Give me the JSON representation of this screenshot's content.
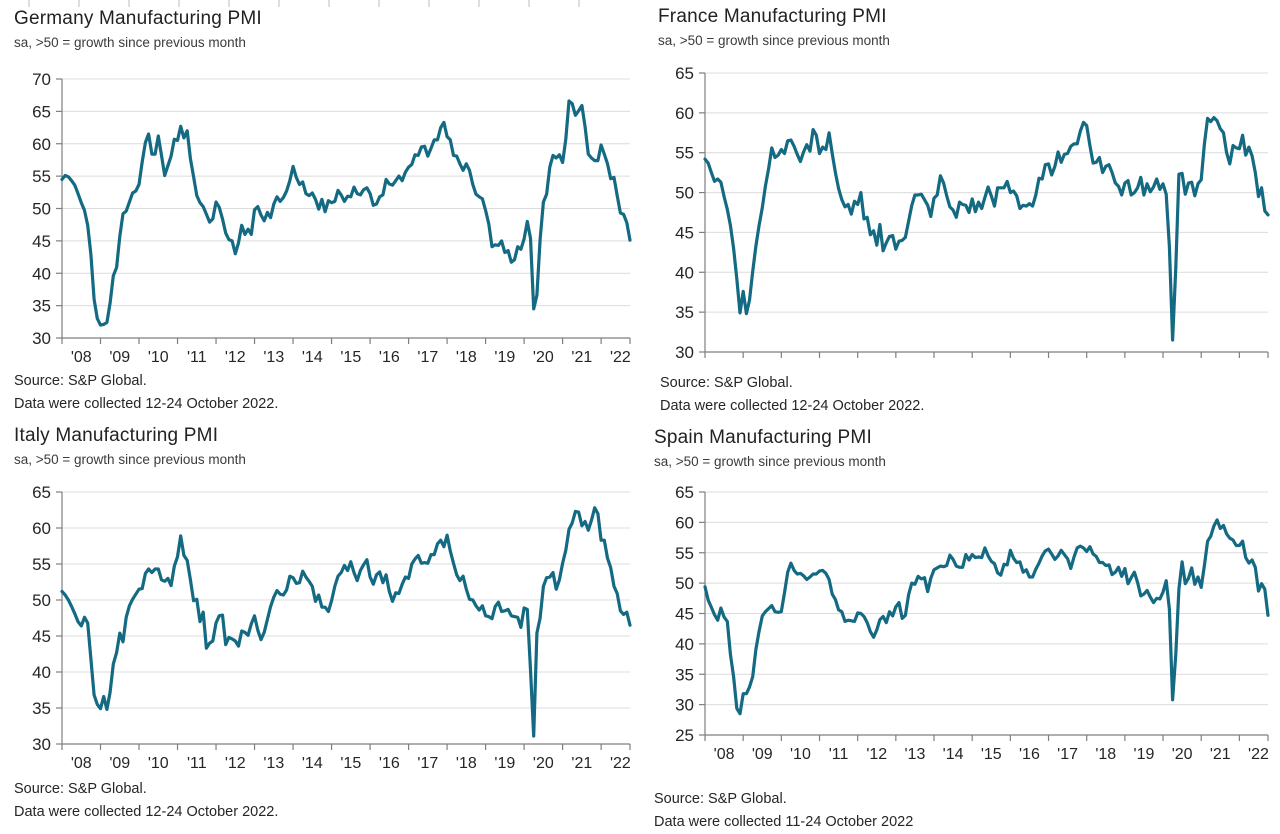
{
  "chart_data": [
    {
      "type": "line",
      "country": "Germany",
      "title": "Germany Manufacturing PMI",
      "subtitle": "sa, >50 = growth since previous month",
      "source": [
        "Source: S&P Global.",
        "Data were collected 12-24 October 2022."
      ],
      "x_start": "2008-01",
      "x_end": "2022-10",
      "x_freq": "monthly",
      "x_tick_labels": [
        "'08",
        "'09",
        "'10",
        "'11",
        "'12",
        "'13",
        "'14",
        "'15",
        "'16",
        "'17",
        "'18",
        "'19",
        "'20",
        "'21",
        "'22"
      ],
      "ylim": [
        30,
        70
      ],
      "y_tick_step": 5,
      "grid": true,
      "legend": "none",
      "line_color": "#136A82",
      "values": [
        54.5,
        55.1,
        54.9,
        54.3,
        53.6,
        52.3,
        50.9,
        49.7,
        47.4,
        42.9,
        36.0,
        33.0,
        32.0,
        32.1,
        32.4,
        35.4,
        39.6,
        40.9,
        45.7,
        49.2,
        49.6,
        51.0,
        52.4,
        52.7,
        53.7,
        57.2,
        60.2,
        61.5,
        58.4,
        58.4,
        61.2,
        58.2,
        55.1,
        56.6,
        58.1,
        60.7,
        60.5,
        62.7,
        60.9,
        62.0,
        57.7,
        54.9,
        52.0,
        50.9,
        50.3,
        49.1,
        47.9,
        48.4,
        51.0,
        50.2,
        48.4,
        46.2,
        45.2,
        45.0,
        43.0,
        44.7,
        47.4,
        46.0,
        46.8,
        46.0,
        49.8,
        50.3,
        49.0,
        48.1,
        49.4,
        48.6,
        50.7,
        51.8,
        51.1,
        51.7,
        52.7,
        54.3,
        56.5,
        54.8,
        53.7,
        54.1,
        52.3,
        52.0,
        52.4,
        51.4,
        49.9,
        51.4,
        49.5,
        51.2,
        50.9,
        51.1,
        52.8,
        52.1,
        51.1,
        51.9,
        51.8,
        53.3,
        52.3,
        52.1,
        52.9,
        53.2,
        52.3,
        50.5,
        50.7,
        51.8,
        52.1,
        54.5,
        53.8,
        53.6,
        54.3,
        55.0,
        54.3,
        55.6,
        56.4,
        56.8,
        58.3,
        58.2,
        59.5,
        59.6,
        58.1,
        59.3,
        60.6,
        60.6,
        62.5,
        63.3,
        61.1,
        60.6,
        58.2,
        58.1,
        56.9,
        55.9,
        56.9,
        55.9,
        53.7,
        52.2,
        51.8,
        51.5,
        49.7,
        47.6,
        44.1,
        44.4,
        44.3,
        45.0,
        43.2,
        43.5,
        41.7,
        42.1,
        44.1,
        43.7,
        45.3,
        48.0,
        45.4,
        34.5,
        36.6,
        45.2,
        51.0,
        52.2,
        56.4,
        58.2,
        57.8,
        58.3,
        57.1,
        60.7,
        66.6,
        66.2,
        64.4,
        65.1,
        65.9,
        62.6,
        58.4,
        57.8,
        57.4,
        57.4,
        59.8,
        58.4,
        56.9,
        54.6,
        54.8,
        52.0,
        49.3,
        49.1,
        47.8,
        45.1
      ]
    },
    {
      "type": "line",
      "country": "France",
      "title": "France Manufacturing PMI",
      "subtitle": "sa, >50 = growth since previous month",
      "source": [
        "Source: S&P Global.",
        "Data were collected 12-24 October 2022."
      ],
      "x_start": "2008-01",
      "x_end": "2022-10",
      "x_freq": "monthly",
      "x_tick_labels": [],
      "ylim": [
        30,
        65
      ],
      "y_tick_step": 5,
      "grid": true,
      "legend": "none",
      "line_color": "#136A82",
      "values": [
        54.2,
        53.7,
        52.5,
        51.4,
        51.7,
        51.3,
        49.5,
        47.9,
        45.9,
        43.0,
        39.2,
        34.9,
        37.6,
        34.8,
        36.5,
        40.1,
        43.3,
        45.9,
        48.1,
        50.8,
        53.0,
        55.6,
        54.4,
        54.7,
        55.4,
        54.9,
        56.5,
        56.6,
        55.8,
        54.8,
        53.9,
        55.1,
        56.0,
        55.2,
        57.9,
        57.2,
        54.9,
        55.7,
        55.4,
        57.5,
        54.9,
        52.5,
        50.5,
        49.1,
        48.2,
        48.5,
        47.3,
        48.9,
        48.5,
        50.0,
        46.7,
        46.9,
        44.7,
        45.2,
        43.4,
        46.0,
        42.7,
        43.7,
        44.5,
        44.6,
        42.9,
        43.9,
        44.0,
        44.4,
        46.4,
        48.4,
        49.7,
        49.7,
        49.8,
        49.1,
        48.4,
        47.0,
        49.3,
        49.7,
        52.1,
        51.2,
        49.6,
        48.2,
        47.8,
        46.9,
        48.8,
        48.5,
        48.4,
        47.5,
        49.2,
        47.6,
        48.8,
        48.0,
        49.4,
        50.7,
        49.6,
        48.3,
        50.6,
        50.6,
        50.6,
        51.4,
        50.0,
        50.2,
        49.6,
        48.0,
        48.4,
        48.3,
        48.6,
        48.3,
        49.7,
        51.8,
        51.7,
        53.5,
        53.6,
        52.2,
        53.3,
        55.1,
        53.8,
        54.8,
        54.9,
        55.8,
        56.1,
        56.1,
        57.7,
        58.8,
        58.4,
        55.9,
        53.7,
        53.8,
        54.4,
        52.5,
        53.3,
        53.5,
        52.5,
        51.2,
        50.8,
        49.7,
        51.2,
        51.5,
        49.7,
        50.0,
        50.6,
        51.9,
        49.7,
        51.1,
        50.1,
        50.7,
        51.7,
        50.4,
        51.1,
        49.8,
        43.2,
        31.5,
        40.6,
        52.3,
        52.4,
        49.8,
        51.2,
        51.3,
        49.6,
        51.1,
        51.6,
        56.1,
        59.3,
        58.9,
        59.4,
        59.0,
        58.0,
        57.5,
        55.0,
        53.6,
        55.9,
        55.6,
        55.5,
        57.2,
        54.7,
        55.7,
        54.6,
        52.5,
        49.5,
        50.6,
        47.7,
        47.2
      ]
    },
    {
      "type": "line",
      "country": "Italy",
      "title": "Italy Manufacturing PMI",
      "subtitle": "sa, >50 = growth since previous month",
      "source": [
        "Source: S&P Global.",
        "Data were collected 12-24 October 2022."
      ],
      "x_start": "2008-01",
      "x_end": "2022-10",
      "x_freq": "monthly",
      "x_tick_labels": [
        "'08",
        "'09",
        "'10",
        "'11",
        "'12",
        "'13",
        "'14",
        "'15",
        "'16",
        "'17",
        "'18",
        "'19",
        "'20",
        "'21",
        "'22"
      ],
      "ylim": [
        30,
        65
      ],
      "y_tick_step": 5,
      "grid": true,
      "legend": "none",
      "line_color": "#136A82",
      "values": [
        51.2,
        50.7,
        50.0,
        49.1,
        48.1,
        47.0,
        46.4,
        47.6,
        46.8,
        41.8,
        36.8,
        35.5,
        34.9,
        36.6,
        34.8,
        37.2,
        41.1,
        42.7,
        45.4,
        44.2,
        47.6,
        49.2,
        50.1,
        50.8,
        51.5,
        51.6,
        53.7,
        54.3,
        53.8,
        54.3,
        54.3,
        52.8,
        52.6,
        53.0,
        52.0,
        54.7,
        56.0,
        58.9,
        56.2,
        55.5,
        52.8,
        49.9,
        50.1,
        47.0,
        48.3,
        43.3,
        44.0,
        44.3,
        46.8,
        47.8,
        47.9,
        43.8,
        44.8,
        44.6,
        44.3,
        43.6,
        45.7,
        45.5,
        45.1,
        46.7,
        47.8,
        45.8,
        44.5,
        45.5,
        47.3,
        49.1,
        50.4,
        51.3,
        50.8,
        50.7,
        51.4,
        53.3,
        53.1,
        52.3,
        52.4,
        54.0,
        53.2,
        52.6,
        51.9,
        49.8,
        50.7,
        49.0,
        49.0,
        48.4,
        49.9,
        51.9,
        53.3,
        53.8,
        54.8,
        54.1,
        55.3,
        53.8,
        52.7,
        54.1,
        54.9,
        55.6,
        53.2,
        52.2,
        53.5,
        53.9,
        52.4,
        53.5,
        51.2,
        49.8,
        51.0,
        50.9,
        52.2,
        53.2,
        53.0,
        55.0,
        55.7,
        56.2,
        55.1,
        55.2,
        55.1,
        56.3,
        56.3,
        57.8,
        58.3,
        57.4,
        59.0,
        56.8,
        55.1,
        53.5,
        52.7,
        53.3,
        51.5,
        50.1,
        50.0,
        49.2,
        48.6,
        49.2,
        47.8,
        47.7,
        47.4,
        49.1,
        49.7,
        48.4,
        48.5,
        48.7,
        47.8,
        47.7,
        47.6,
        46.2,
        48.9,
        48.7,
        40.3,
        31.1,
        45.4,
        47.5,
        51.9,
        53.1,
        53.2,
        53.8,
        51.5,
        52.8,
        55.1,
        56.9,
        59.8,
        60.7,
        62.3,
        62.2,
        60.3,
        60.9,
        59.7,
        61.1,
        62.8,
        62.0,
        58.3,
        58.3,
        55.8,
        54.5,
        51.9,
        50.9,
        48.5,
        48.0,
        48.3,
        46.5
      ]
    },
    {
      "type": "line",
      "country": "Spain",
      "title": "Spain Manufacturing PMI",
      "subtitle": "sa, >50 = growth since previous month",
      "source": [
        "Source: S&P Global.",
        "Data were collected 11-24 October 2022"
      ],
      "x_start": "2008-01",
      "x_end": "2022-10",
      "x_freq": "monthly",
      "x_tick_labels": [
        "'08",
        "'09",
        "'10",
        "'11",
        "'12",
        "'13",
        "'14",
        "'15",
        "'16",
        "'17",
        "'18",
        "'19",
        "'20",
        "'21",
        "'22"
      ],
      "ylim": [
        25,
        65
      ],
      "y_tick_step": 5,
      "grid": true,
      "legend": "none",
      "line_color": "#136A82",
      "values": [
        49.4,
        47.2,
        46.0,
        44.8,
        43.9,
        45.9,
        44.4,
        43.7,
        38.3,
        34.6,
        29.4,
        28.5,
        31.8,
        31.8,
        32.9,
        34.6,
        39.1,
        42.1,
        44.6,
        45.3,
        45.8,
        46.3,
        45.3,
        45.2,
        45.3,
        48.4,
        51.8,
        53.3,
        52.1,
        51.5,
        51.6,
        51.2,
        50.6,
        51.0,
        51.5,
        51.5,
        52.0,
        52.1,
        51.6,
        50.6,
        48.2,
        47.3,
        45.6,
        45.3,
        43.7,
        43.9,
        43.8,
        43.7,
        45.1,
        45.0,
        44.5,
        43.5,
        42.0,
        41.1,
        42.3,
        44.0,
        44.5,
        43.5,
        45.3,
        44.6,
        46.1,
        46.8,
        44.2,
        44.7,
        48.1,
        50.0,
        49.8,
        51.1,
        50.7,
        50.9,
        48.6,
        50.8,
        52.2,
        52.5,
        52.8,
        52.7,
        52.9,
        54.6,
        53.9,
        52.8,
        52.6,
        52.6,
        54.7,
        53.8,
        54.7,
        54.2,
        54.3,
        54.2,
        55.8,
        54.5,
        53.6,
        53.2,
        51.7,
        51.3,
        53.1,
        53.0,
        55.4,
        54.1,
        53.4,
        53.5,
        51.8,
        52.2,
        51.0,
        51.0,
        52.3,
        53.3,
        54.5,
        55.3,
        55.6,
        54.8,
        53.9,
        54.5,
        55.4,
        54.7,
        54.0,
        52.4,
        54.3,
        55.8,
        56.1,
        55.8,
        55.2,
        56.0,
        54.8,
        54.4,
        53.4,
        53.4,
        52.9,
        53.0,
        51.4,
        51.8,
        52.6,
        51.1,
        52.4,
        49.9,
        50.9,
        51.8,
        50.1,
        47.9,
        48.2,
        48.8,
        47.7,
        46.8,
        47.5,
        47.4,
        48.5,
        50.4,
        45.7,
        30.8,
        38.3,
        49.0,
        53.5,
        49.9,
        50.8,
        52.5,
        49.8,
        51.0,
        49.3,
        52.9,
        56.9,
        57.7,
        59.4,
        60.4,
        59.0,
        59.5,
        58.1,
        57.4,
        57.1,
        56.2,
        56.2,
        56.9,
        54.2,
        53.3,
        53.8,
        52.6,
        48.7,
        49.9,
        49.0,
        44.7
      ]
    }
  ]
}
